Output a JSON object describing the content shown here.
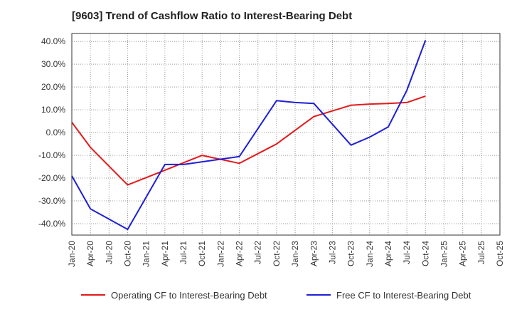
{
  "chart_data": {
    "type": "line",
    "title": "[9603]  Trend of Cashflow Ratio to Interest-Bearing Debt",
    "xlabel": "",
    "ylabel": "",
    "x_ticks": [
      "Jan-20",
      "Apr-20",
      "Jul-20",
      "Oct-20",
      "Jan-21",
      "Apr-21",
      "Jul-21",
      "Oct-21",
      "Jan-22",
      "Apr-22",
      "Jul-22",
      "Oct-22",
      "Jan-23",
      "Apr-23",
      "Jul-23",
      "Oct-23",
      "Jan-24",
      "Apr-24",
      "Jul-24",
      "Oct-24",
      "Jan-25",
      "Apr-25",
      "Jul-25",
      "Oct-25"
    ],
    "y_ticks": [
      "40.0%",
      "30.0%",
      "20.0%",
      "10.0%",
      "0.0%",
      "-10.0%",
      "-20.0%",
      "-30.0%",
      "-40.0%"
    ],
    "y_tick_values": [
      40,
      30,
      20,
      10,
      0,
      -10,
      -20,
      -30,
      -40
    ],
    "ylim": [
      -45,
      43.5
    ],
    "grid": true,
    "legend_position": "bottom",
    "series": [
      {
        "name": "Operating CF to Interest-Bearing Debt",
        "color": "#e31a1c",
        "x": [
          "Jan-20",
          "Apr-20",
          "Oct-20",
          "Apr-21",
          "Oct-21",
          "Apr-22",
          "Oct-22",
          "Apr-23",
          "Oct-23",
          "Jan-24",
          "Apr-24",
          "Jul-24",
          "Oct-24"
        ],
        "values": [
          4.5,
          -6.5,
          -23.0,
          -16.5,
          -10.0,
          -13.5,
          -5.0,
          7.0,
          12.0,
          12.5,
          12.8,
          13.2,
          16.0
        ]
      },
      {
        "name": "Free CF to Interest-Bearing Debt",
        "color": "#1f1fd6",
        "x": [
          "Jan-20",
          "Apr-20",
          "Oct-20",
          "Apr-21",
          "Jul-21",
          "Apr-22",
          "Oct-22",
          "Jan-23",
          "Apr-23",
          "Oct-23",
          "Jan-24",
          "Apr-24",
          "Jul-24",
          "Oct-24"
        ],
        "values": [
          -19.0,
          -33.5,
          -42.5,
          -14.0,
          -14.0,
          -10.5,
          14.0,
          13.2,
          12.8,
          -5.5,
          -2.0,
          2.5,
          18.5,
          40.5
        ]
      }
    ]
  }
}
